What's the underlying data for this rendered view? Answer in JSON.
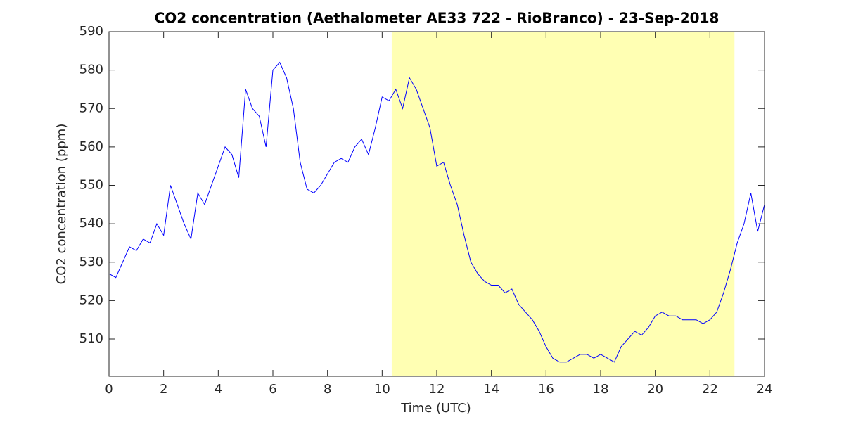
{
  "chart_data": {
    "type": "line",
    "title": "CO2 concentration (Aethalometer AE33 722 - RioBranco) - 23-Sep-2018",
    "x_label": "Time (UTC)",
    "y_label": "CO2 concentration (ppm)",
    "xlim": [
      0,
      24
    ],
    "ylim": [
      500.3,
      590
    ],
    "xticks": [
      0,
      2,
      4,
      6,
      8,
      10,
      12,
      14,
      16,
      18,
      20,
      22,
      24
    ],
    "yticks": [
      510,
      520,
      530,
      540,
      550,
      560,
      570,
      580,
      590
    ],
    "highlight": {
      "xlim": [
        10.35,
        22.9
      ],
      "color": "#ffffb3"
    },
    "x": [
      0,
      0.25,
      0.5,
      0.75,
      1,
      1.25,
      1.5,
      1.75,
      2,
      2.25,
      2.5,
      2.75,
      3,
      3.25,
      3.5,
      3.75,
      4,
      4.25,
      4.5,
      4.75,
      5,
      5.25,
      5.5,
      5.75,
      6,
      6.25,
      6.5,
      6.75,
      7,
      7.25,
      7.5,
      7.75,
      8,
      8.25,
      8.5,
      8.75,
      9,
      9.25,
      9.5,
      9.75,
      10,
      10.25,
      10.5,
      10.75,
      11,
      11.25,
      11.5,
      11.75,
      12,
      12.25,
      12.5,
      12.75,
      13,
      13.25,
      13.5,
      13.75,
      14,
      14.25,
      14.5,
      14.75,
      15,
      15.25,
      15.5,
      15.75,
      16,
      16.25,
      16.5,
      16.75,
      17,
      17.25,
      17.5,
      17.75,
      18,
      18.25,
      18.5,
      18.75,
      19,
      19.25,
      19.5,
      19.75,
      20,
      20.25,
      20.5,
      20.75,
      21,
      21.25,
      21.5,
      21.75,
      22,
      22.25,
      22.5,
      22.75,
      23,
      23.25,
      23.5,
      23.75,
      24
    ],
    "series": [
      {
        "name": "CO2",
        "color": "#0000ff",
        "values": [
          527,
          526,
          530,
          534,
          533,
          536,
          535,
          540,
          537,
          550,
          545,
          540,
          536,
          548,
          545,
          550,
          555,
          560,
          558,
          552,
          575,
          570,
          568,
          560,
          580,
          582,
          578,
          570,
          556,
          549,
          548,
          550,
          553,
          556,
          557,
          556,
          560,
          562,
          558,
          565,
          573,
          572,
          575,
          570,
          578,
          575,
          570,
          565,
          555,
          556,
          550,
          545,
          537,
          530,
          527,
          525,
          524,
          524,
          522,
          523,
          519,
          517,
          515,
          512,
          508,
          505,
          504,
          504,
          505,
          506,
          506,
          505,
          506,
          505,
          504,
          508,
          510,
          512,
          511,
          513,
          516,
          517,
          516,
          516,
          515,
          515,
          515,
          514,
          515,
          517,
          522,
          528,
          535,
          540,
          548,
          538,
          545
        ]
      }
    ]
  }
}
